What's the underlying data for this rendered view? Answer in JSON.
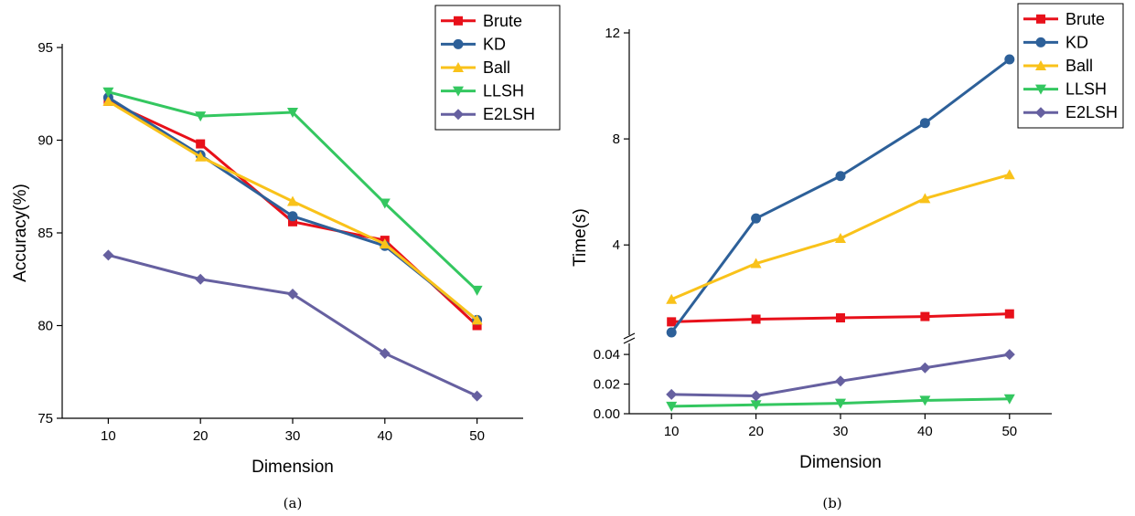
{
  "chart_data": [
    {
      "type": "line",
      "caption": "(a)",
      "xlabel": "Dimension",
      "ylabel": "Accuracy(%)",
      "x": [
        10,
        20,
        30,
        40,
        50
      ],
      "xticks": [
        "10",
        "20",
        "30",
        "40",
        "50"
      ],
      "ylim": [
        75,
        95
      ],
      "yticks": [
        "75",
        "80",
        "85",
        "90",
        "95"
      ],
      "legend": "top-right",
      "series": [
        {
          "name": "Brute",
          "color": "#e8101a",
          "marker": "square",
          "values": [
            92.1,
            89.8,
            85.6,
            84.6,
            80.0
          ]
        },
        {
          "name": "KD",
          "color": "#2d6099",
          "marker": "circle",
          "values": [
            92.3,
            89.2,
            85.9,
            84.3,
            80.3
          ]
        },
        {
          "name": "Ball",
          "color": "#f9c21a",
          "marker": "triangle-up",
          "values": [
            92.1,
            89.1,
            86.7,
            84.4,
            80.3
          ]
        },
        {
          "name": "LLSH",
          "color": "#34c760",
          "marker": "triangle-down",
          "values": [
            92.6,
            91.3,
            91.5,
            86.6,
            81.9
          ]
        },
        {
          "name": "E2LSH",
          "color": "#6660a0",
          "marker": "diamond",
          "values": [
            83.8,
            82.5,
            81.7,
            78.5,
            76.2
          ]
        }
      ]
    },
    {
      "type": "line",
      "caption": "(b)",
      "xlabel": "Dimension",
      "ylabel": "Time(s)",
      "x": [
        10,
        20,
        30,
        40,
        50
      ],
      "xticks": [
        "10",
        "20",
        "30",
        "40",
        "50"
      ],
      "broken_axis": true,
      "ylim_lower": [
        0,
        0.045
      ],
      "yticks_lower": [
        "0.00",
        "0.02",
        "0.04"
      ],
      "ylim_upper": [
        0.7,
        12
      ],
      "yticks_upper": [
        "4",
        "8",
        "12"
      ],
      "legend": "top-right",
      "series": [
        {
          "name": "Brute",
          "color": "#e8101a",
          "marker": "square",
          "values": [
            1.1,
            1.2,
            1.25,
            1.3,
            1.4
          ]
        },
        {
          "name": "KD",
          "color": "#2d6099",
          "marker": "circle",
          "values": [
            0.7,
            5.0,
            6.6,
            8.6,
            11.0
          ]
        },
        {
          "name": "Ball",
          "color": "#f9c21a",
          "marker": "triangle-up",
          "values": [
            1.95,
            3.3,
            4.25,
            5.75,
            6.65
          ]
        },
        {
          "name": "LLSH",
          "color": "#34c760",
          "marker": "triangle-down",
          "values": [
            0.005,
            0.006,
            0.007,
            0.009,
            0.01
          ]
        },
        {
          "name": "E2LSH",
          "color": "#6660a0",
          "marker": "diamond",
          "values": [
            0.013,
            0.012,
            0.022,
            0.031,
            0.04
          ]
        }
      ]
    }
  ]
}
